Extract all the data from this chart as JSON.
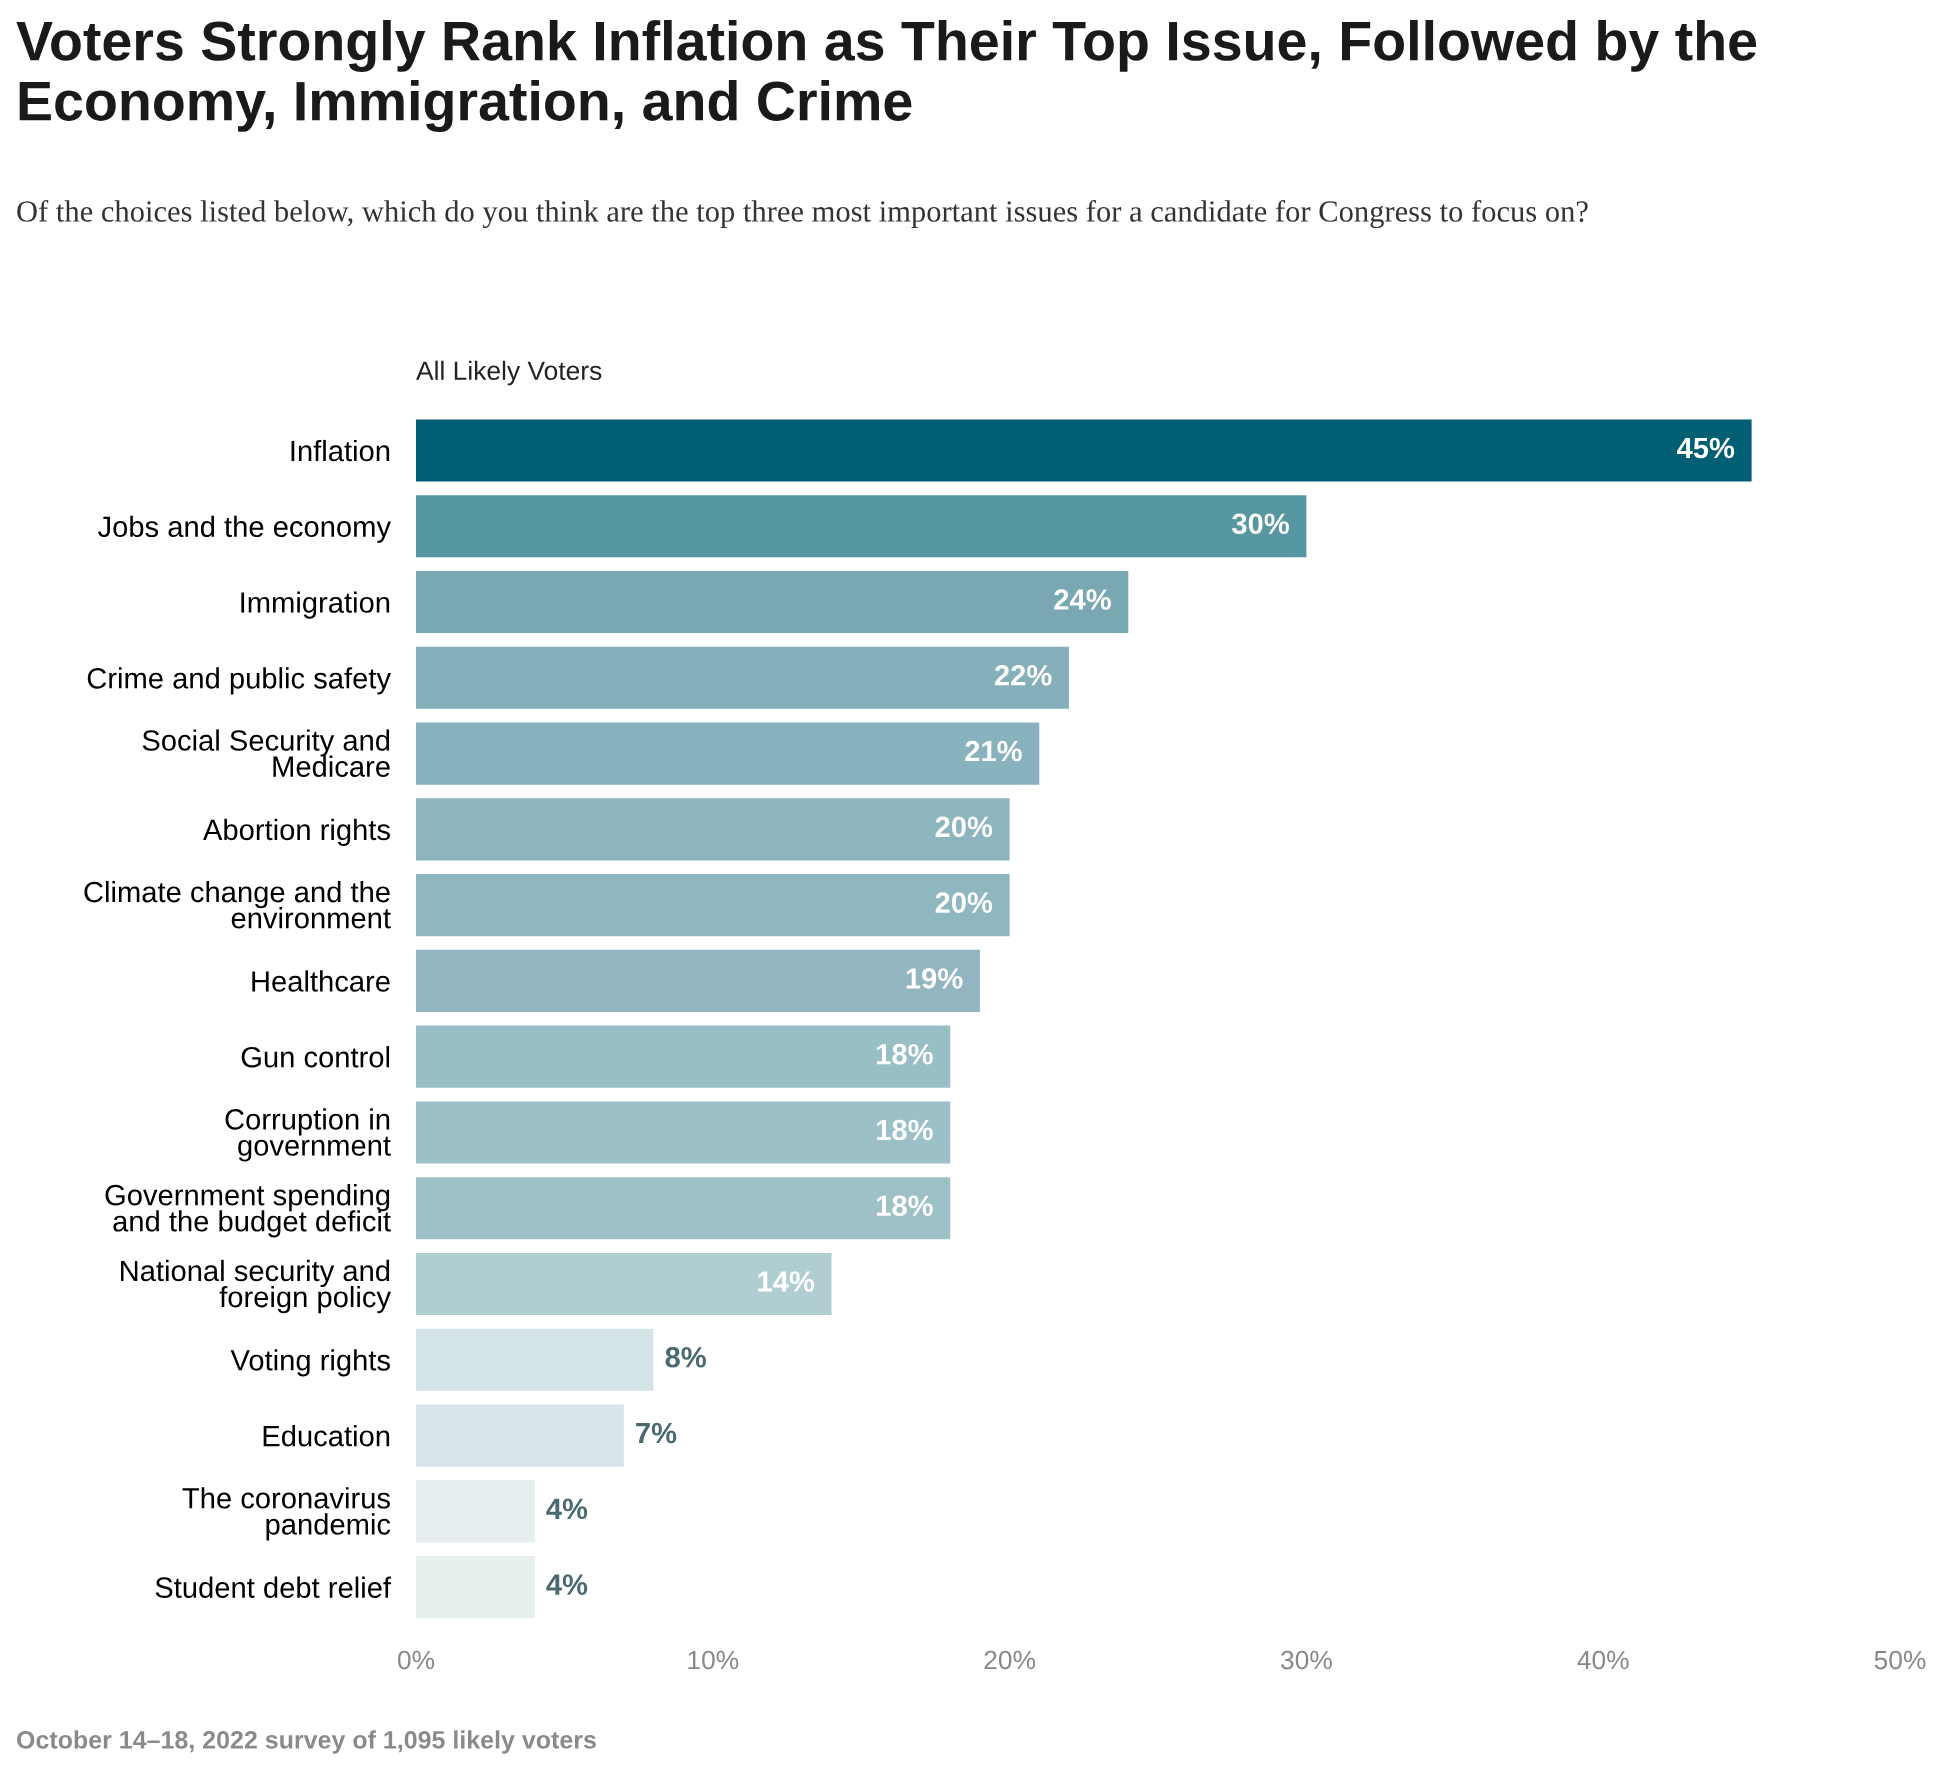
{
  "chart_data": {
    "type": "bar",
    "orientation": "horizontal",
    "title": "Voters Strongly Rank Inflation as Their Top Issue, Followed by the Economy, Immigration, and Crime",
    "subtitle": "Of the choices listed below, which do you think are the top three most important issues for a candidate for Congress to focus on?",
    "categories": [
      "Inflation",
      "Jobs and the economy",
      "Immigration",
      "Crime and public safety",
      "Social Security and\nMedicare",
      "Abortion rights",
      "Climate change and the\nenvironment",
      "Healthcare",
      "Gun control",
      "Corruption in\ngovernment",
      "Government spending\nand the budget deficit",
      "National security and\nforeign policy",
      "Voting rights",
      "Education",
      "The coronavirus\npandemic",
      "Student debt relief"
    ],
    "values": [
      45,
      30,
      24,
      22,
      21,
      20,
      20,
      19,
      18,
      18,
      18,
      14,
      8,
      7,
      4,
      4
    ],
    "colors": [
      "#005f73",
      "#5797a1",
      "#79a8b2",
      "#85b0bb",
      "#88b2bd",
      "#8db5be",
      "#8fb7c0",
      "#92b6c1",
      "#98bfc6",
      "#9bc0c7",
      "#9ec1c8",
      "#b0ced2",
      "#d3e3e6",
      "#d8e5e8",
      "#e6eeef",
      "#e8efef"
    ],
    "value_labels": [
      "45%",
      "30%",
      "24%",
      "22%",
      "21%",
      "20%",
      "20%",
      "19%",
      "18%",
      "18%",
      "18%",
      "14%",
      "8%",
      "7%",
      "4%",
      "4%"
    ],
    "xlim": [
      0,
      50
    ],
    "xticks": [
      {
        "value": 0,
        "label": "0%"
      },
      {
        "value": 10,
        "label": "10%"
      },
      {
        "value": 20,
        "label": "20%"
      },
      {
        "value": 30,
        "label": "30%"
      },
      {
        "value": 40,
        "label": "40%"
      },
      {
        "value": 50,
        "label": "50%"
      }
    ],
    "grid": false,
    "legend": false,
    "annotations": [
      "All Likely Voters",
      "October 14–18, 2022 survey of 1,095 likely voters"
    ]
  }
}
